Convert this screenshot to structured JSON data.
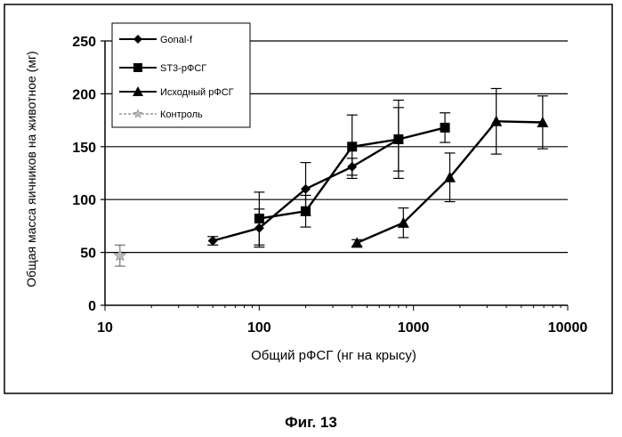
{
  "figure_caption": "Фиг. 13",
  "chart_data": {
    "type": "line",
    "xscale": "log",
    "xlabel": "Общий рФСГ (нг на крысу)",
    "ylabel": "Общая масса яичников на животное (мг)",
    "xlim": [
      10,
      10000
    ],
    "ylim": [
      0,
      250
    ],
    "xticks": [
      10,
      100,
      1000,
      10000
    ],
    "xtick_labels": [
      "10",
      "100",
      "1000",
      "10000"
    ],
    "yticks": [
      0,
      50,
      100,
      150,
      200,
      250
    ],
    "ytick_labels": [
      "0",
      "50",
      "100",
      "150",
      "200",
      "250"
    ],
    "grid": "horizontal",
    "legend_position": "top-left",
    "series": [
      {
        "name": "Gonal-f",
        "marker": "diamond",
        "line": true,
        "x": [
          50,
          100,
          200,
          400,
          800
        ],
        "y": [
          61,
          73,
          110,
          131,
          157
        ],
        "err": [
          4,
          18,
          25,
          8,
          30
        ]
      },
      {
        "name": "ST3-рФСГ",
        "marker": "square",
        "line": true,
        "x": [
          100,
          200,
          400,
          800,
          1600
        ],
        "y": [
          82,
          89,
          150,
          157,
          168
        ],
        "err": [
          25,
          15,
          30,
          37,
          14
        ]
      },
      {
        "name": "Исходный рФСГ",
        "marker": "triangle",
        "line": true,
        "x": [
          430,
          860,
          1720,
          3440,
          6880
        ],
        "y": [
          59,
          78,
          121,
          174,
          173
        ],
        "err": [
          3,
          14,
          23,
          31,
          25
        ]
      },
      {
        "name": "Контроль",
        "marker": "star",
        "line": false,
        "x": [
          12.5
        ],
        "y": [
          47
        ],
        "err": [
          10
        ]
      }
    ]
  }
}
